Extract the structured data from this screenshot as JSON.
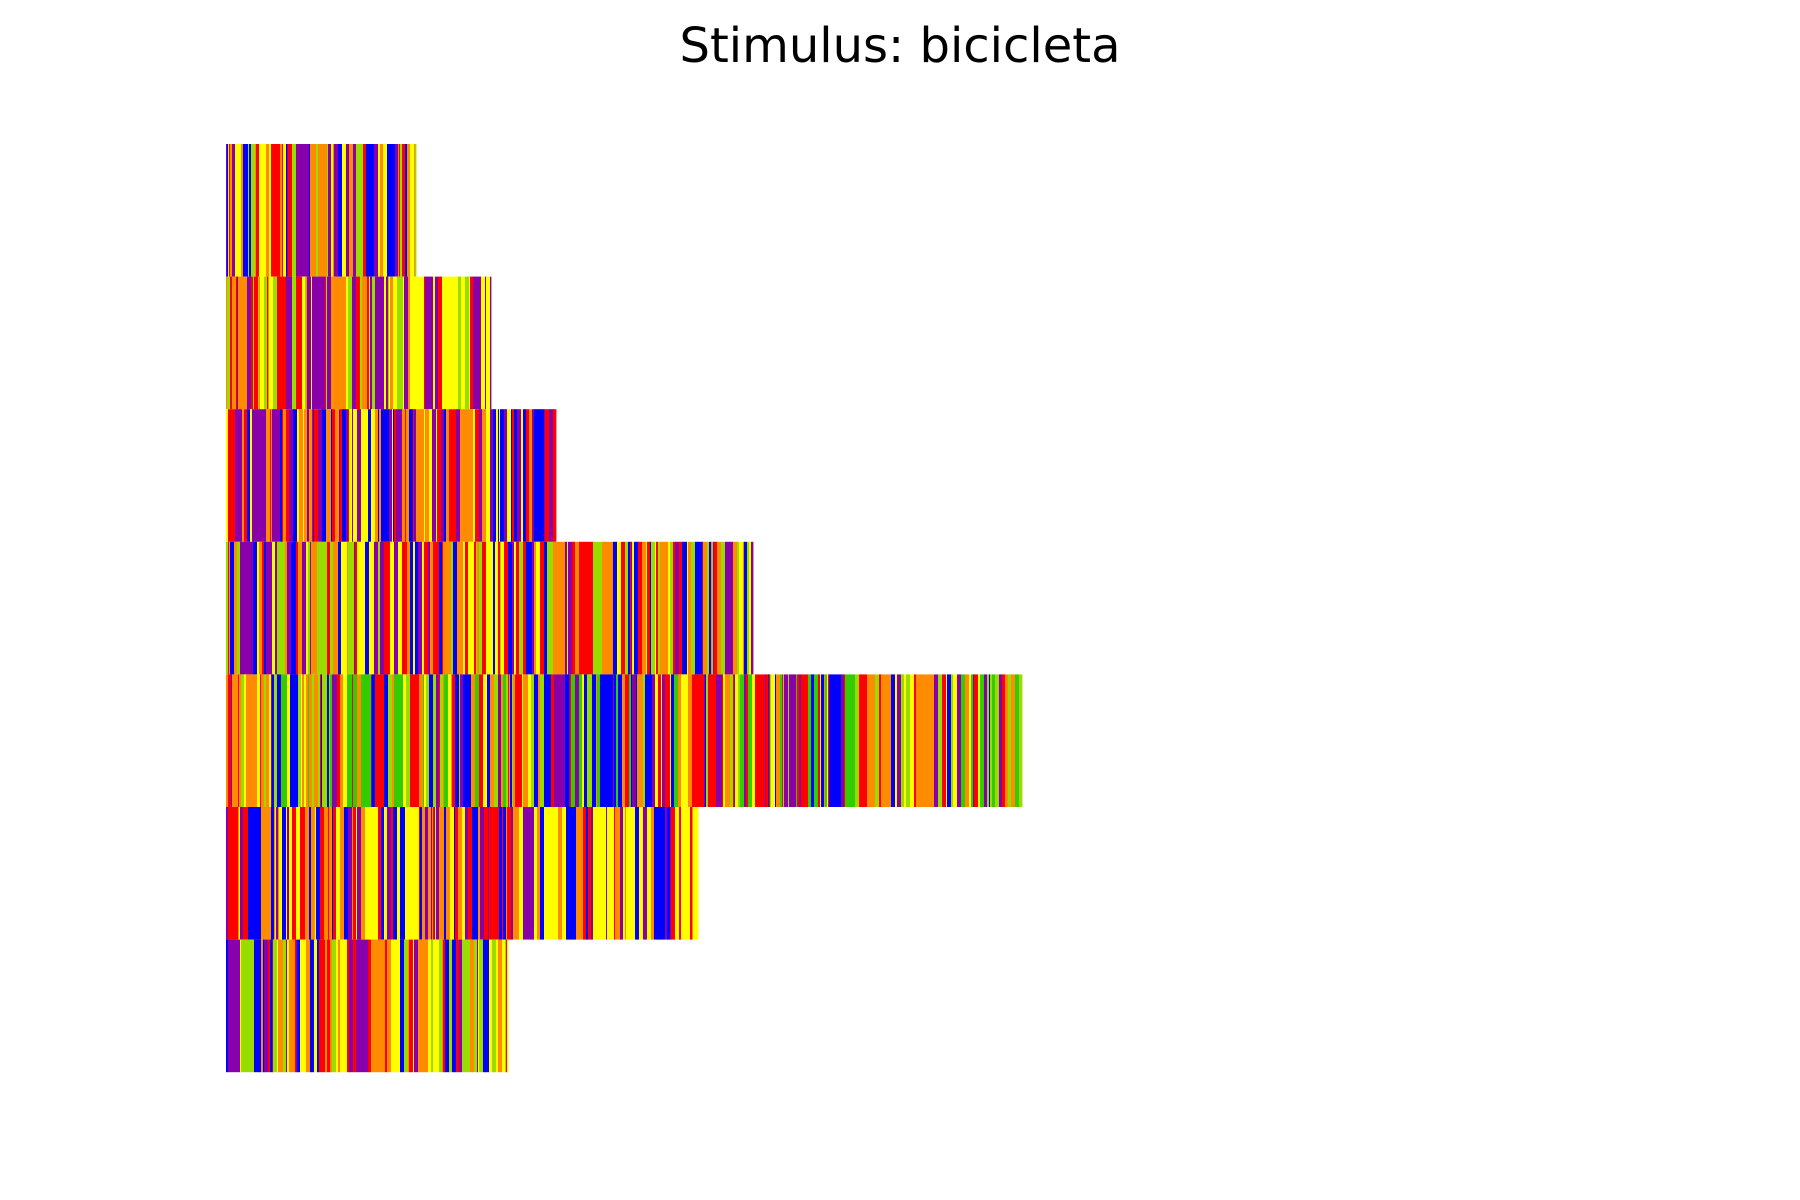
{
  "chart_data": {
    "type": "heatmap",
    "title": "Stimulus: bicicleta",
    "xlabel": "",
    "ylabel": "",
    "axes_visible": false,
    "grid": false,
    "legend": "none",
    "x_unit_max": 1000,
    "palette": {
      "red": "#ff0000",
      "orange": "#ff8c00",
      "yellow": "#ffff00",
      "lime": "#99dd00",
      "green": "#33cc00",
      "purple": "#8800aa",
      "blue": "#0000ff",
      "crimson": "#cc0033"
    },
    "rows": [
      {
        "length": 190,
        "dominant": [
          "yellow",
          "red",
          "purple",
          "orange",
          "lime",
          "blue"
        ],
        "seed": 11
      },
      {
        "length": 265,
        "dominant": [
          "yellow",
          "red",
          "orange",
          "purple",
          "lime"
        ],
        "seed": 23
      },
      {
        "length": 330,
        "dominant": [
          "yellow",
          "red",
          "orange",
          "purple",
          "blue"
        ],
        "seed": 37
      },
      {
        "length": 527,
        "dominant": [
          "yellow",
          "red",
          "orange",
          "purple",
          "blue",
          "lime"
        ],
        "seed": 41
      },
      {
        "length": 796,
        "dominant": [
          "orange",
          "red",
          "yellow",
          "purple",
          "blue",
          "lime",
          "green"
        ],
        "seed": 53
      },
      {
        "length": 472,
        "dominant": [
          "yellow",
          "red",
          "orange",
          "purple",
          "blue"
        ],
        "seed": 67
      },
      {
        "length": 282,
        "dominant": [
          "yellow",
          "orange",
          "purple",
          "red",
          "lime",
          "blue"
        ],
        "seed": 79
      }
    ]
  }
}
